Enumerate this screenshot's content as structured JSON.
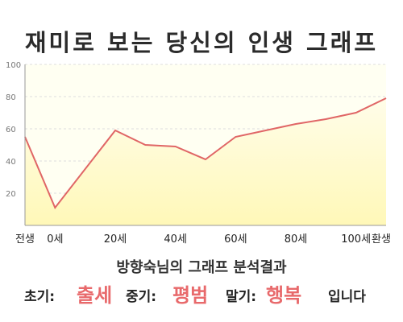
{
  "title": "재미로 보는 당신의 인생 그래프",
  "subtitle": "방향숙님의 그래프 분석결과",
  "result": {
    "early_label": "초기:",
    "early_value": "출세",
    "mid_label": "중기:",
    "mid_value": "평범",
    "late_label": "말기:",
    "late_value": "행복",
    "closing": "입니다"
  },
  "colors": {
    "line": "#e06666",
    "fill_top": "#fffde9",
    "fill_bottom": "#fff8b8",
    "plot_bg": "#fffff2",
    "accent_text": "#e8696b"
  },
  "chart_data": {
    "type": "area",
    "x_tick_labels": [
      "전생",
      "0세",
      "20세",
      "40세",
      "60세",
      "80세",
      "100세",
      "환생"
    ],
    "x": [
      -10,
      0,
      20,
      30,
      40,
      50,
      60,
      70,
      80,
      90,
      100,
      110
    ],
    "y": [
      55,
      11,
      59,
      50,
      49,
      41,
      55,
      59,
      63,
      66,
      70,
      79
    ],
    "ylim": [
      0,
      100
    ],
    "y_ticks": [
      20,
      40,
      60,
      80,
      100
    ],
    "grid": "horizontal dashed",
    "legend": "none"
  }
}
